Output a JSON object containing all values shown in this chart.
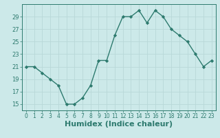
{
  "x": [
    0,
    1,
    2,
    3,
    4,
    5,
    6,
    7,
    8,
    9,
    10,
    11,
    12,
    13,
    14,
    15,
    16,
    17,
    18,
    19,
    20,
    21,
    22,
    23
  ],
  "y": [
    21,
    21,
    20,
    19,
    18,
    15,
    15,
    16,
    18,
    22,
    22,
    26,
    29,
    29,
    30,
    28,
    30,
    29,
    27,
    26,
    25,
    23,
    21,
    22
  ],
  "line_color": "#2d7a6e",
  "marker": "D",
  "marker_size": 2.2,
  "bg_color": "#cce9e9",
  "grid_color": "#b8d8d8",
  "xlabel": "Humidex (Indice chaleur)",
  "xlim": [
    -0.5,
    23.5
  ],
  "ylim": [
    14,
    31
  ],
  "yticks": [
    15,
    17,
    19,
    21,
    23,
    25,
    27,
    29
  ],
  "xtick_labels": [
    "0",
    "1",
    "2",
    "3",
    "4",
    "5",
    "6",
    "7",
    "8",
    "9",
    "10",
    "11",
    "12",
    "13",
    "14",
    "15",
    "16",
    "17",
    "18",
    "19",
    "20",
    "21",
    "22",
    "23"
  ],
  "axis_fontsize": 7.5,
  "tick_fontsize": 6.0,
  "xlabel_fontsize": 8.0
}
